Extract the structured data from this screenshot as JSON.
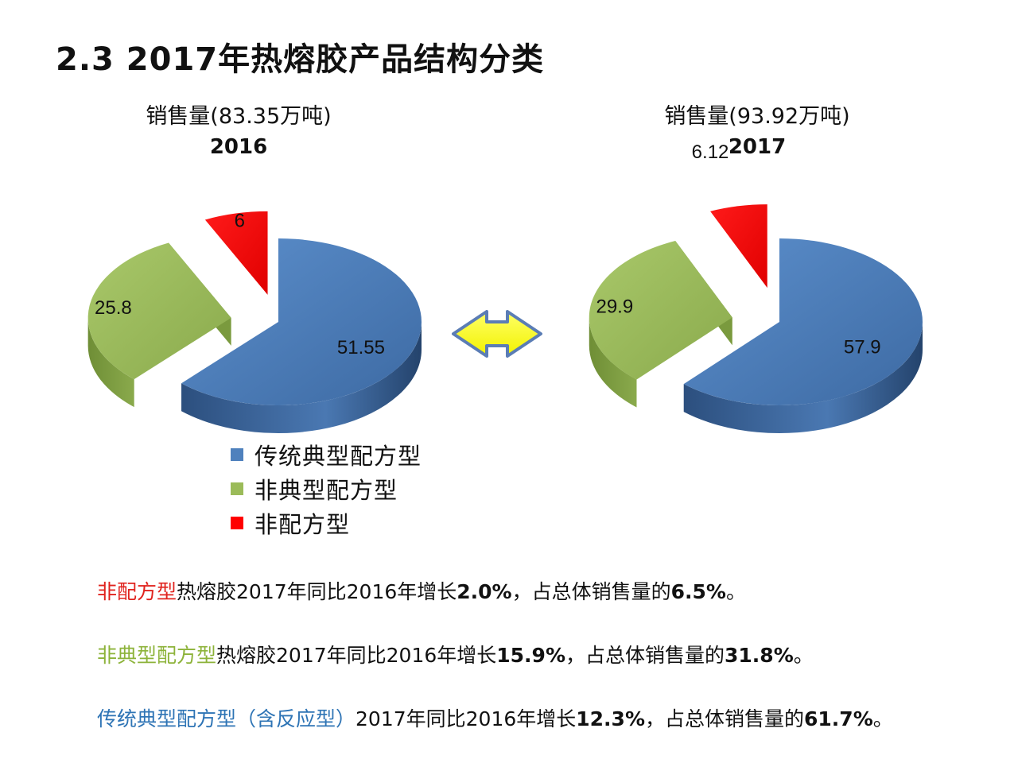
{
  "slide": {
    "title": "2.3  2017年热熔胶产品结构分类"
  },
  "colors": {
    "blue": "#4f81bd",
    "green": "#9bbb59",
    "red": "#ff0000",
    "arrow_fill": "#ffff00",
    "arrow_stroke": "#5b7db5"
  },
  "chart_data": [
    {
      "type": "pie",
      "title": "销售量(83.35万吨)",
      "subtitle": "2016",
      "categories": [
        "传统典型配方型",
        "非典型配方型",
        "非配方型"
      ],
      "values": [
        51.55,
        25.8,
        6
      ],
      "value_labels": [
        "51.55",
        "25.8",
        "6"
      ],
      "colors": [
        "#4f81bd",
        "#9bbb59",
        "#ff0000"
      ]
    },
    {
      "type": "pie",
      "title": "销售量(93.92万吨)",
      "subtitle": "2017",
      "categories": [
        "传统典型配方型",
        "非典型配方型",
        "非配方型"
      ],
      "values": [
        57.9,
        29.9,
        6.12
      ],
      "value_labels": [
        "57.9",
        "29.9",
        "6.12"
      ],
      "colors": [
        "#4f81bd",
        "#9bbb59",
        "#ff0000"
      ]
    }
  ],
  "legend": {
    "items": [
      {
        "label": "传统典型配方型",
        "color": "#4f81bd"
      },
      {
        "label": "非典型配方型",
        "color": "#9bbb59"
      },
      {
        "label": "非配方型",
        "color": "#ff0000"
      }
    ]
  },
  "notes": [
    {
      "colored": "非配方型",
      "color": "#e0231e",
      "t1": "热熔胶2017年同比2016年增长",
      "b1": "2.0%",
      "t2": "，占总体销售量的",
      "b2": "6.5%",
      "t3": "。"
    },
    {
      "colored": "非典型配方型",
      "color": "#8db33a",
      "t1": "热熔胶2017年同比2016年增长",
      "b1": "15.9%",
      "t2": "，占总体销售量的",
      "b2": "31.8%",
      "t3": "。"
    },
    {
      "colored": "传统典型配方型（含反应型）",
      "color": "#2e74b5",
      "t1": "2017年同比2016年增长",
      "b1": "12.3%",
      "t2": "，占总体销售量的",
      "b2": "61.7%",
      "t3": "。"
    }
  ]
}
